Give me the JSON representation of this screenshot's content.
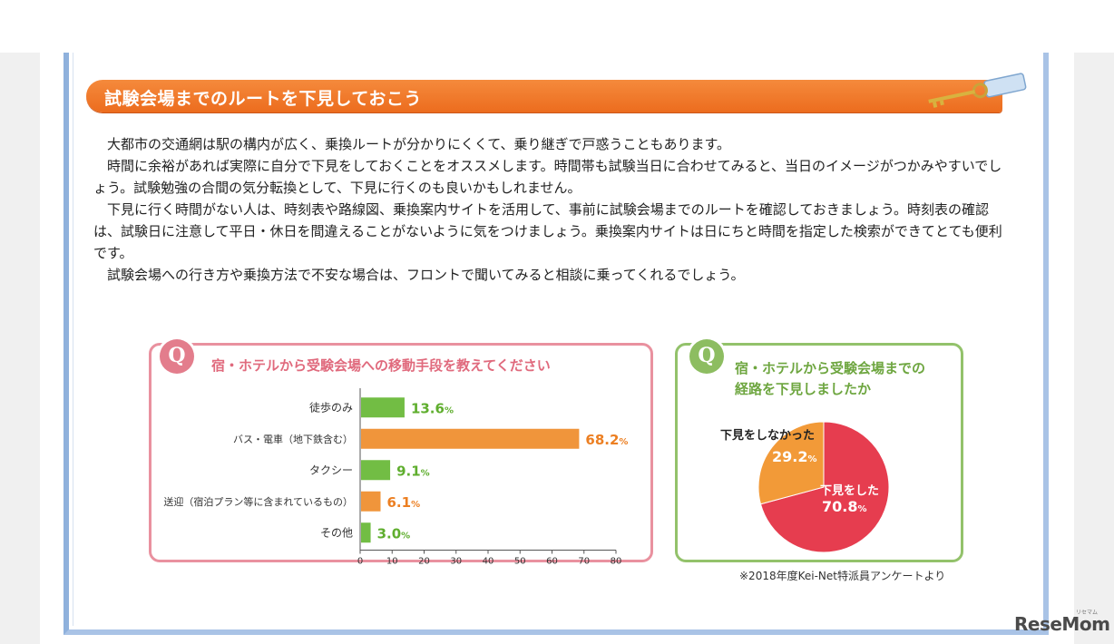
{
  "section_title": "試験会場までのルートを下見しておこう",
  "paragraphs": [
    "大都市の交通網は駅の構内が広く、乗換ルートが分かりにくくて、乗り継ぎで戸惑うこともあります。",
    "時間に余裕があれば実際に自分で下見をしておくことをオススメします。時間帯も試験当日に合わせてみると、当日のイメージがつかみやすいでしょう。試験勉強の合間の気分転換として、下見に行くのも良いかもしれません。",
    "下見に行く時間がない人は、時刻表や路線図、乗換案内サイトを活用して、事前に試験会場までのルートを確認しておきましょう。時刻表の確認は、試験日に注意して平日・休日を間違えることがないように気をつけましょう。乗換案内サイトは日にちと時間を指定した検索ができてとても便利です。",
    "試験会場への行き方や乗換方法で不安な場合は、フロントで聞いてみると相談に乗ってくれるでしょう。"
  ],
  "q_badge": "Q",
  "question_left": "宿・ホテルから受験会場への移動手段を教えてください",
  "question_right_line1": "宿・ホテルから受験会場までの",
  "question_right_line2": "経路を下見しましたか",
  "source_note": "※2018年度Kei-Net特派員アンケートより",
  "logo_text": "ReseMom",
  "logo_sub": "リセマム",
  "colors": {
    "orange": "#f0953b",
    "green": "#72bd44",
    "red": "#e63d4f",
    "pie_orange": "#f29a38",
    "label_green": "#5fae2e",
    "label_orange": "#ec7f22"
  },
  "chart_data": [
    {
      "type": "bar",
      "orientation": "horizontal",
      "categories": [
        "徒歩のみ",
        "バス・電車（地下鉄含む）",
        "タクシー",
        "送迎（宿泊プラン等に含まれているもの）",
        "その他"
      ],
      "values": [
        13.6,
        68.2,
        9.1,
        6.1,
        3.0
      ],
      "labels": [
        "13.6",
        "68.2",
        "9.1",
        "6.1",
        "3.0"
      ],
      "unit": "%",
      "bar_colors": [
        "green",
        "orange",
        "green",
        "orange",
        "green"
      ],
      "xlim": [
        0,
        80
      ],
      "xticks": [
        "0",
        "10",
        "20",
        "30",
        "40",
        "50",
        "60",
        "70",
        "80"
      ],
      "grid": false
    },
    {
      "type": "pie",
      "slices": [
        {
          "name": "下見をした",
          "value": 70.8,
          "label": "70.8",
          "color": "red"
        },
        {
          "name": "下見をしなかった",
          "value": 29.2,
          "label": "29.2",
          "color": "pie_orange"
        }
      ],
      "unit": "%"
    }
  ]
}
